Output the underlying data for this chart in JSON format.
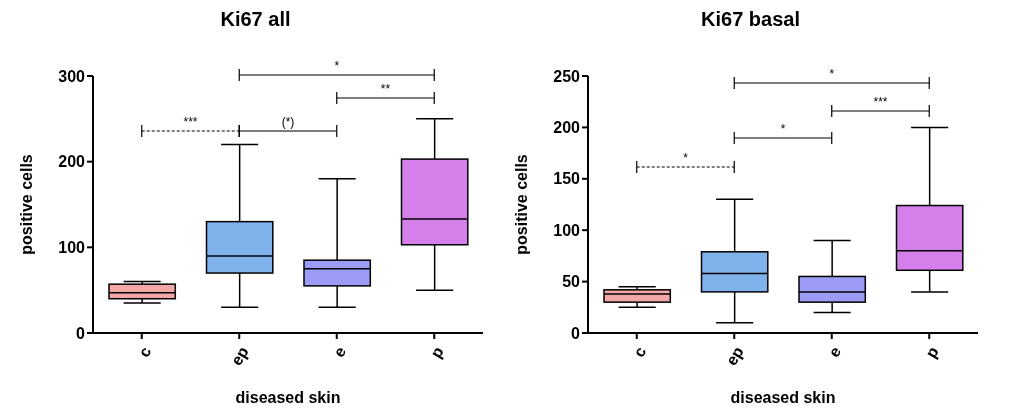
{
  "chart_data": [
    {
      "type": "box",
      "title": "Ki67 all",
      "xlabel": "diseased skin",
      "ylabel": "positive cells",
      "categories": [
        "c",
        "ep",
        "e",
        "p"
      ],
      "colors": [
        "#f4a7a7",
        "#7fb2ea",
        "#9c9cf6",
        "#d580ea"
      ],
      "boxes": [
        {
          "low": 35,
          "q1": 40,
          "median": 47,
          "q3": 57,
          "high": 60
        },
        {
          "low": 30,
          "q1": 70,
          "median": 90,
          "q3": 130,
          "high": 220
        },
        {
          "low": 30,
          "q1": 55,
          "median": 75,
          "q3": 85,
          "high": 180
        },
        {
          "low": 50,
          "q1": 103,
          "median": 133,
          "q3": 203,
          "high": 250
        }
      ],
      "ylim": [
        0,
        300
      ],
      "yticks": [
        0,
        100,
        200,
        300
      ],
      "annotations": [
        "***",
        "(*)",
        "*",
        "**"
      ]
    },
    {
      "type": "box",
      "title": "Ki67 basal",
      "xlabel": "diseased skin",
      "ylabel": "positive cells",
      "categories": [
        "c",
        "ep",
        "e",
        "p"
      ],
      "colors": [
        "#f4a7a7",
        "#7fb2ea",
        "#9c9cf6",
        "#d580ea"
      ],
      "boxes": [
        {
          "low": 25,
          "q1": 30,
          "median": 38,
          "q3": 42,
          "high": 45
        },
        {
          "low": 10,
          "q1": 40,
          "median": 58,
          "q3": 79,
          "high": 130
        },
        {
          "low": 20,
          "q1": 30,
          "median": 40,
          "q3": 55,
          "high": 90
        },
        {
          "low": 40,
          "q1": 61,
          "median": 80,
          "q3": 124,
          "high": 200
        }
      ],
      "ylim": [
        0,
        250
      ],
      "yticks": [
        0,
        50,
        100,
        150,
        200,
        250
      ],
      "annotations": [
        "*",
        "*",
        "*",
        "***"
      ]
    }
  ]
}
